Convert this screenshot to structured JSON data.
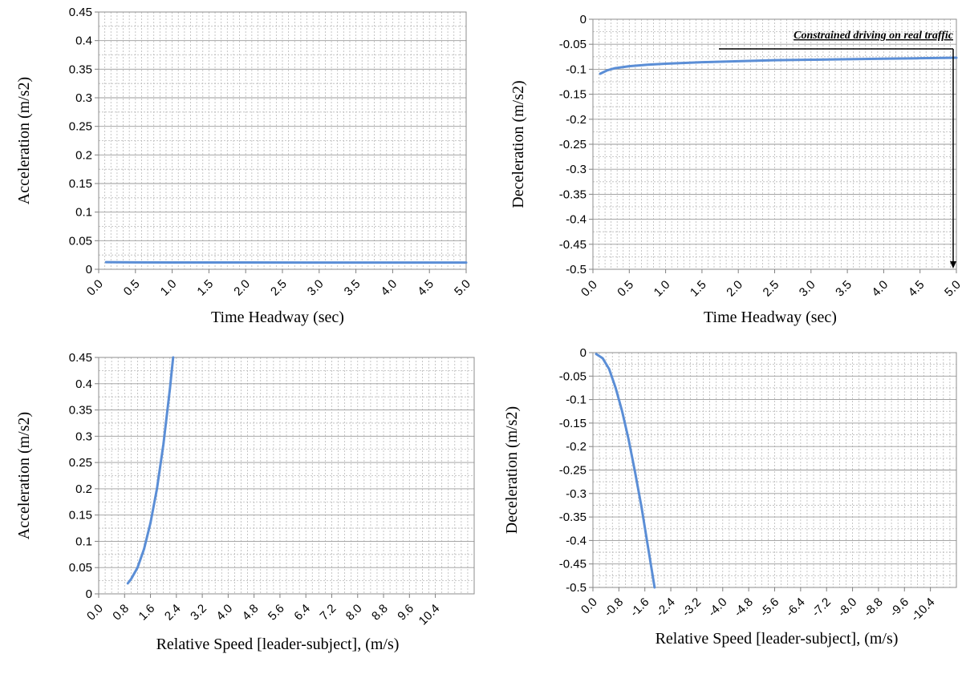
{
  "chart_data": [
    {
      "type": "line",
      "xlabel": "Time Headway (sec)",
      "ylabel": "Acceleration (m/s2)",
      "ylim": [
        0,
        0.45
      ],
      "yticks": [
        0,
        0.05,
        0.1,
        0.15,
        0.2,
        0.25,
        0.3,
        0.35,
        0.4,
        0.45
      ],
      "ytick_labels": [
        "0",
        "0.05",
        "0.1",
        "0.15",
        "0.2",
        "0.25",
        "0.3",
        "0.35",
        "0.4",
        "0.45"
      ],
      "xlim": [
        0,
        5.0
      ],
      "xtick_labels": [
        "0.0",
        "0.5",
        "1.0",
        "1.5",
        "2.0",
        "2.5",
        "3.0",
        "3.5",
        "4.0",
        "4.5",
        "5.0"
      ],
      "grid": true,
      "line_color": "#5b8ed6",
      "series": [
        {
          "x": [
            0.1,
            0.3,
            0.5,
            1.0,
            2.0,
            3.0,
            4.0,
            5.0
          ],
          "y": [
            0.0125,
            0.0122,
            0.0121,
            0.012,
            0.0119,
            0.0118,
            0.0118,
            0.0118
          ]
        }
      ]
    },
    {
      "type": "line",
      "xlabel": "Time Headway (sec)",
      "ylabel": "Deceleration (m/s2)",
      "ylim": [
        -0.5,
        0
      ],
      "yticks": [
        0,
        -0.05,
        -0.1,
        -0.15,
        -0.2,
        -0.25,
        -0.3,
        -0.35,
        -0.4,
        -0.45,
        -0.5
      ],
      "ytick_labels": [
        "0",
        "-0.05",
        "-0.1",
        "-0.15",
        "-0.2",
        "-0.25",
        "-0.3",
        "-0.35",
        "-0.4",
        "-0.45",
        "-0.5"
      ],
      "xlim": [
        0,
        5.0
      ],
      "xtick_labels": [
        "0.0",
        "0.5",
        "1.0",
        "1.5",
        "2.0",
        "2.5",
        "3.0",
        "3.5",
        "4.0",
        "4.5",
        "5.0"
      ],
      "grid": true,
      "line_color": "#5b8ed6",
      "annotation": "Constrained driving on real traffic",
      "series": [
        {
          "x": [
            0.1,
            0.2,
            0.3,
            0.5,
            0.75,
            1.0,
            1.5,
            2.0,
            2.5,
            3.0,
            3.5,
            4.0,
            4.5,
            5.0
          ],
          "y": [
            -0.109,
            -0.102,
            -0.098,
            -0.094,
            -0.091,
            -0.089,
            -0.086,
            -0.084,
            -0.082,
            -0.081,
            -0.08,
            -0.079,
            -0.078,
            -0.077
          ]
        }
      ]
    },
    {
      "type": "line",
      "xlabel": "Relative Speed [leader-subject], (m/s)",
      "ylabel": "Acceleration (m/s2)",
      "ylim": [
        0,
        0.45
      ],
      "yticks": [
        0,
        0.05,
        0.1,
        0.15,
        0.2,
        0.25,
        0.3,
        0.35,
        0.4,
        0.45
      ],
      "ytick_labels": [
        "0",
        "0.05",
        "0.1",
        "0.15",
        "0.2",
        "0.25",
        "0.3",
        "0.35",
        "0.4",
        "0.45"
      ],
      "xlim": [
        0,
        11.6
      ],
      "xtick_labels": [
        "0.0",
        "0.8",
        "1.6",
        "2.4",
        "3.2",
        "4.0",
        "4.8",
        "5.6",
        "6.4",
        "7.2",
        "8.0",
        "8.8",
        "9.6",
        "10.4"
      ],
      "grid": true,
      "line_color": "#5b8ed6",
      "series": [
        {
          "x": [
            0.9,
            1.0,
            1.2,
            1.4,
            1.6,
            1.8,
            2.0,
            2.2,
            2.3
          ],
          "y": [
            0.02,
            0.028,
            0.05,
            0.085,
            0.135,
            0.2,
            0.285,
            0.39,
            0.45
          ]
        }
      ]
    },
    {
      "type": "line",
      "xlabel": "Relative Speed [leader-subject], (m/s)",
      "ylabel": "Deceleration (m/s2)",
      "ylim": [
        -0.5,
        0
      ],
      "yticks": [
        0,
        -0.05,
        -0.1,
        -0.15,
        -0.2,
        -0.25,
        -0.3,
        -0.35,
        -0.4,
        -0.45,
        -0.5
      ],
      "ytick_labels": [
        "0",
        "-0.05",
        "-0.1",
        "-0.15",
        "-0.2",
        "-0.25",
        "-0.3",
        "-0.35",
        "-0.4",
        "-0.45",
        "-0.5"
      ],
      "xlim": [
        0,
        -11.2
      ],
      "xtick_labels": [
        "0.0",
        "-0.8",
        "-1.6",
        "-2.4",
        "-3.2",
        "-4.0",
        "-4.8",
        "-5.6",
        "-6.4",
        "-7.2",
        "-8.0",
        "-8.8",
        "-9.6",
        "-10.4"
      ],
      "grid": true,
      "line_color": "#5b8ed6",
      "series": [
        {
          "x": [
            -0.1,
            -0.3,
            -0.5,
            -0.7,
            -0.9,
            -1.1,
            -1.3,
            -1.5,
            -1.7,
            -1.9
          ],
          "y": [
            -0.003,
            -0.012,
            -0.035,
            -0.075,
            -0.125,
            -0.185,
            -0.255,
            -0.33,
            -0.415,
            -0.5
          ]
        }
      ]
    }
  ]
}
